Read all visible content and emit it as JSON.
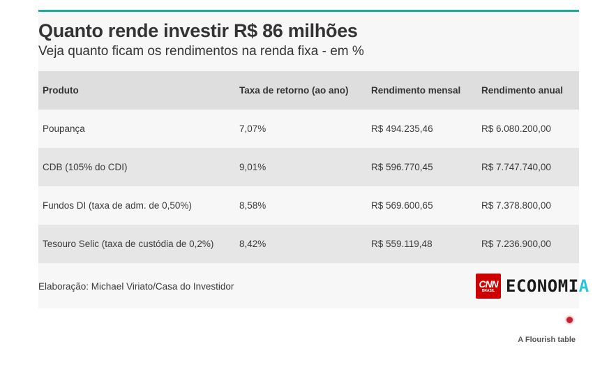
{
  "title": "Quanto rende investir R$ 86 milhões",
  "subtitle": "Veja quanto ficam os rendimentos na renda fixa - em %",
  "chart_data": {
    "type": "table",
    "columns": [
      "Produto",
      "Taxa de retorno (ao ano)",
      "Rendimento mensal",
      "Rendimento anual"
    ],
    "rows": [
      [
        "Poupança",
        "7,07%",
        "R$ 494.235,46",
        "R$ 6.080.200,00"
      ],
      [
        "CDB (105% do CDI)",
        "9,01%",
        "R$ 596.770,45",
        "R$ 7.747.740,00"
      ],
      [
        "Fundos DI (taxa de adm. de 0,50%)",
        "8,58%",
        "R$ 569.600,65",
        "R$ 7.378.800,00"
      ],
      [
        "Tesouro Selic (taxa de custódia de 0,2%)",
        "8,42%",
        "R$ 559.119,48",
        "R$ 7.236.900,00"
      ]
    ]
  },
  "credit": "Elaboração: Michael Viriato/Casa do Investidor",
  "logo": {
    "cnn": "CNN",
    "cnn_sub": "BRASIL",
    "word_main": "ECONOMI",
    "word_accent": "A"
  },
  "flourish_label": "A Flourish table",
  "colors": {
    "accent_rule": "#1fa79a",
    "header_bg": "#dedede",
    "row_alt_bg": "#e6e6e6",
    "cnn_red": "#cc0000",
    "flourish_dot": "#c4232e"
  }
}
